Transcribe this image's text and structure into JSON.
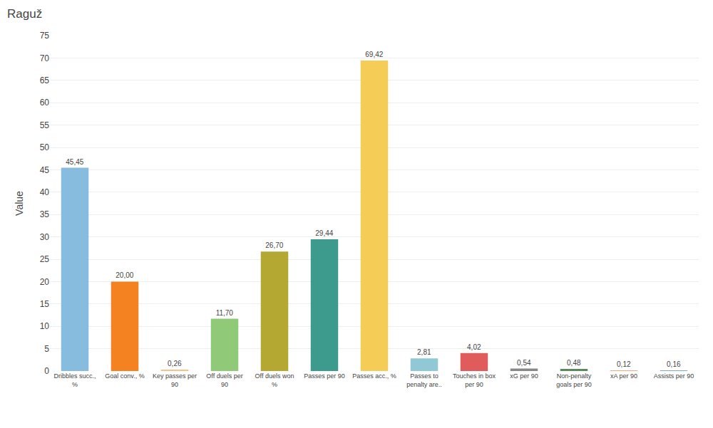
{
  "chart_data": {
    "type": "bar",
    "title": "Raguž",
    "ylabel": "Value",
    "categories": [
      "Dribbles succ.,\n%",
      "Goal conv., %",
      "Key passes per\n90",
      "Off duels per\n90",
      "Off duels won\n%",
      "Passes per 90",
      "Passes acc., %",
      "Passes to\npenalty are..",
      "Touches in box\nper 90",
      "xG per 90",
      "Non-penalty\ngoals per 90",
      "xA per 90",
      "Assists per 90"
    ],
    "values": [
      45.45,
      20.0,
      0.26,
      11.7,
      26.7,
      29.44,
      69.42,
      2.81,
      4.02,
      0.54,
      0.48,
      0.12,
      0.16
    ],
    "value_labels": [
      "45,45",
      "20,00",
      "0,26",
      "11,70",
      "26,70",
      "29,44",
      "69,42",
      "2,81",
      "4,02",
      "0,54",
      "0,48",
      "0,12",
      "0,16"
    ],
    "data_labels": true,
    "colors": [
      "#87BCDE",
      "#F58220",
      "#F5C28A",
      "#90C978",
      "#B5A832",
      "#3D9B8E",
      "#F5CC55",
      "#90C8D5",
      "#E05C5C",
      "#888888",
      "#5A8A5A",
      "#F5A882",
      "#7EA8C8"
    ],
    "ylim": [
      0,
      75
    ],
    "yticks": [
      0,
      5,
      10,
      15,
      20,
      25,
      30,
      35,
      40,
      45,
      50,
      55,
      60,
      65,
      70,
      75
    ],
    "grid": true
  }
}
